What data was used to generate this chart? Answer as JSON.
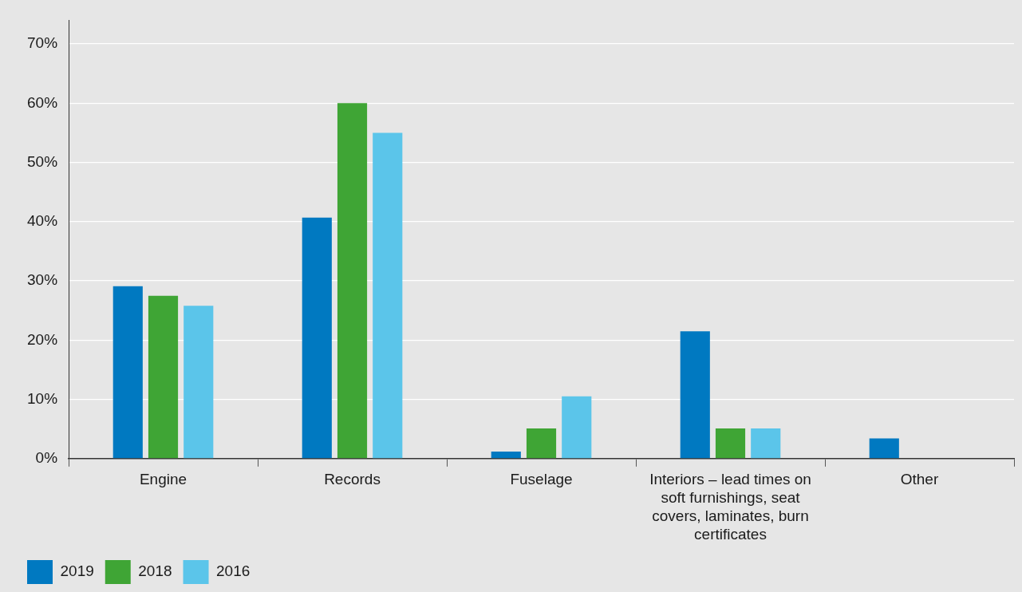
{
  "chart_data": {
    "type": "bar",
    "categories": [
      "Engine",
      "Records",
      "Fuselage",
      "Interiors – lead times on soft furnishings, seat covers, laminates, burn certificates",
      "Other"
    ],
    "series": [
      {
        "name": "2019",
        "color": "#0079c1",
        "values": [
          29.1,
          40.7,
          1.2,
          21.5,
          3.4
        ]
      },
      {
        "name": "2018",
        "color": "#3fa535",
        "values": [
          27.5,
          60,
          5.1,
          5.1,
          null
        ]
      },
      {
        "name": "2016",
        "color": "#5bc5ea",
        "values": [
          25.8,
          55,
          10.5,
          5.1,
          null
        ]
      }
    ],
    "ylim": [
      0,
      74
    ],
    "yticks": [
      {
        "value": 0,
        "label": "0%"
      },
      {
        "value": 10,
        "label": "10%"
      },
      {
        "value": 20,
        "label": "20%"
      },
      {
        "value": 30,
        "label": "30%"
      },
      {
        "value": 40,
        "label": "40%"
      },
      {
        "value": 50,
        "label": "50%"
      },
      {
        "value": 60,
        "label": "60%"
      },
      {
        "value": 70,
        "label": "70%"
      }
    ],
    "grid": "y",
    "legend": "bottom left"
  }
}
